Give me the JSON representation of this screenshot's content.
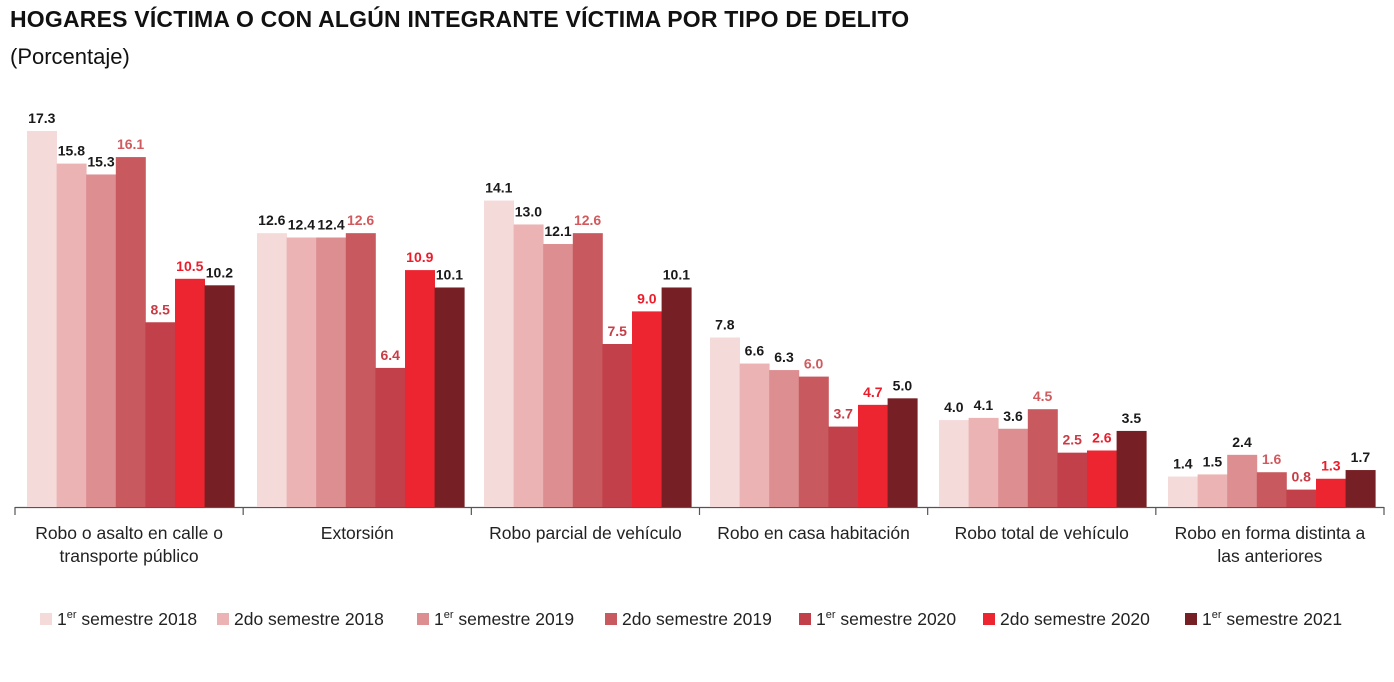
{
  "title": "HOGARES VÍCTIMA O CON ALGÚN INTEGRANTE VÍCTIMA POR TIPO DE DELITO",
  "subtitle": "(Porcentaje)",
  "chart_data": {
    "type": "bar",
    "categories": [
      [
        "Robo o asalto en calle o",
        "transporte público"
      ],
      [
        "Extorsión"
      ],
      [
        "Robo parcial de vehículo"
      ],
      [
        "Robo en casa habitación"
      ],
      [
        "Robo total de vehículo"
      ],
      [
        "Robo en forma distinta a",
        "las anteriores"
      ]
    ],
    "series": [
      {
        "name": "1er semestre 2018",
        "name_parts": [
          "1",
          "er",
          " semestre 2018"
        ],
        "color": "#f5dada",
        "label_color": "#1a1a1a",
        "values": [
          17.3,
          12.6,
          14.1,
          7.8,
          4.0,
          1.4
        ]
      },
      {
        "name": "2do semestre 2018",
        "name_parts": [
          "2do semestre 2018",
          "",
          ""
        ],
        "color": "#ebb3b3",
        "label_color": "#1a1a1a",
        "values": [
          15.8,
          12.4,
          13.0,
          6.6,
          4.1,
          1.5
        ]
      },
      {
        "name": "1er semestre 2019",
        "name_parts": [
          "1",
          "er",
          " semestre 2019"
        ],
        "color": "#dc8e91",
        "label_color": "#1a1a1a",
        "values": [
          15.3,
          12.4,
          12.1,
          6.3,
          3.6,
          2.4
        ]
      },
      {
        "name": "2do semestre 2019",
        "name_parts": [
          "2do semestre 2019",
          "",
          ""
        ],
        "color": "#c85a5f",
        "label_color": "#d05a5e",
        "values": [
          16.1,
          12.6,
          12.6,
          6.0,
          4.5,
          1.6
        ]
      },
      {
        "name": "1er semestre 2020",
        "name_parts": [
          "1",
          "er",
          " semestre 2020"
        ],
        "color": "#c1404a",
        "label_color": "#c83c46",
        "values": [
          8.5,
          6.4,
          7.5,
          3.7,
          2.5,
          0.8
        ]
      },
      {
        "name": "2do semestre 2020",
        "name_parts": [
          "2do semestre 2020",
          "",
          ""
        ],
        "color": "#ec2530",
        "label_color": "#ec1c2a",
        "values": [
          10.5,
          10.9,
          9.0,
          4.7,
          2.6,
          1.3
        ]
      },
      {
        "name": "1er semestre 2021",
        "name_parts": [
          "1",
          "er",
          " semestre 2021"
        ],
        "color": "#761f24",
        "label_color": "#1a1a1a",
        "values": [
          10.2,
          10.1,
          10.1,
          5.0,
          3.5,
          1.7
        ]
      }
    ],
    "ylim": [
      0,
      18
    ],
    "grid": false,
    "legend_position": "bottom"
  }
}
